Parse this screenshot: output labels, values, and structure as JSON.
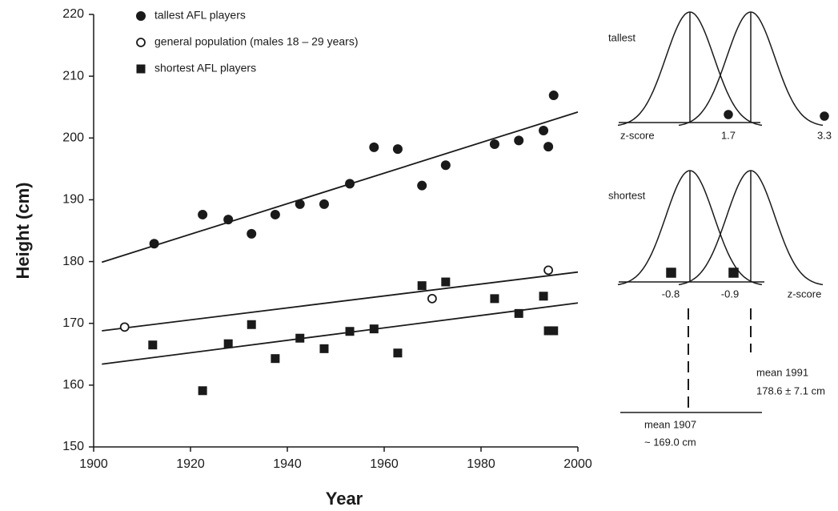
{
  "chart_data": {
    "type": "scatter",
    "x_label": "Year",
    "y_label": "Height (cm)",
    "xlim": [
      1900,
      2000
    ],
    "xticks": [
      1900,
      1920,
      1940,
      1960,
      1980,
      2000
    ],
    "ylim": [
      150,
      220
    ],
    "yticks": [
      150,
      160,
      170,
      180,
      190,
      200,
      210,
      220
    ],
    "series": [
      {
        "name": "tallest AFL players",
        "marker": "circle",
        "color": "#1a1a1a",
        "x": [
          1912.5,
          1922.5,
          1927.8,
          1932.6,
          1937.5,
          1942.6,
          1947.6,
          1952.9,
          1957.9,
          1962.8,
          1967.8,
          1972.7,
          1982.8,
          1987.8,
          1992.9,
          1993.9,
          1995.0
        ],
        "values": [
          182.9,
          187.6,
          186.8,
          184.5,
          187.6,
          189.3,
          189.3,
          192.6,
          198.5,
          198.2,
          192.3,
          195.6,
          199.0,
          199.6,
          201.2,
          198.6,
          206.9
        ],
        "trend": {
          "x": [
            1901.7,
            2000
          ],
          "values": [
            179.9,
            204.2
          ]
        }
      },
      {
        "name": "general population (males 18 – 29 years)",
        "marker": "open-circle",
        "color": "#1a1a1a",
        "x": [
          1906.4,
          1969.9,
          1993.9
        ],
        "values": [
          169.4,
          174.0,
          178.6
        ],
        "trend": {
          "x": [
            1901.7,
            2000
          ],
          "values": [
            168.8,
            178.3
          ]
        }
      },
      {
        "name": "shortest AFL players",
        "marker": "square",
        "color": "#1a1a1a",
        "x": [
          1912.2,
          1922.5,
          1927.8,
          1932.6,
          1937.5,
          1942.6,
          1947.6,
          1952.9,
          1957.9,
          1962.8,
          1967.8,
          1972.7,
          1982.8,
          1987.8,
          1992.9,
          1993.9,
          1995.0
        ],
        "values": [
          166.5,
          159.1,
          166.7,
          169.8,
          164.3,
          167.6,
          165.9,
          168.7,
          169.1,
          165.2,
          176.1,
          176.7,
          174.0,
          171.6,
          174.4,
          168.8,
          168.8
        ],
        "trend": {
          "x": [
            1901.7,
            2000
          ],
          "values": [
            163.4,
            173.3
          ]
        }
      }
    ]
  },
  "side_panels": {
    "tallest": {
      "label": "tallest",
      "axis_label": "z-score",
      "points": [
        "1.7",
        "3.3"
      ]
    },
    "shortest": {
      "label": "shortest",
      "axis_label": "z-score",
      "points": [
        "-0.8",
        "-0.9"
      ]
    },
    "mean_1991": {
      "label": "mean 1991",
      "value": "178.6 ± 7.1 cm"
    },
    "mean_1907": {
      "label": "mean 1907",
      "value": "~ 169.0 cm"
    }
  }
}
